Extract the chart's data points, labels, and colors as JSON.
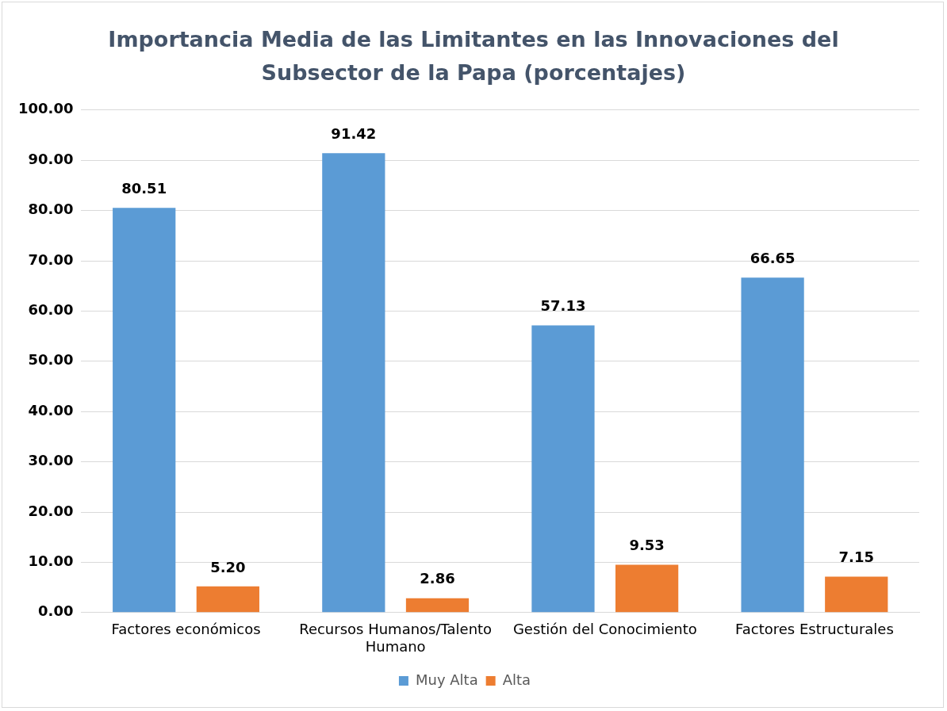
{
  "chart_data": {
    "type": "bar",
    "title": "Importancia Media de las Limitantes en las Innovaciones del Subsector de la Papa (porcentajes)",
    "categories": [
      "Factores económicos",
      "Recursos Humanos/Talento Humano",
      "Gestión del Conocimiento",
      "Factores Estructurales"
    ],
    "series": [
      {
        "name": "Muy Alta",
        "color": "#5b9bd5",
        "values": [
          80.51,
          91.42,
          57.13,
          66.65
        ],
        "value_labels": [
          "80.51",
          "91.42",
          "57.13",
          "66.65"
        ]
      },
      {
        "name": "Alta",
        "color": "#ed7d31",
        "values": [
          5.2,
          2.86,
          9.53,
          7.15
        ],
        "value_labels": [
          "5.20",
          "2.86",
          "9.53",
          "7.15"
        ]
      }
    ],
    "ylim": [
      0,
      100
    ],
    "yticks": [
      {
        "value": 0,
        "label": "0.00"
      },
      {
        "value": 10,
        "label": "10.00"
      },
      {
        "value": 20,
        "label": "20.00"
      },
      {
        "value": 30,
        "label": "30.00"
      },
      {
        "value": 40,
        "label": "40.00"
      },
      {
        "value": 50,
        "label": "50.00"
      },
      {
        "value": 60,
        "label": "60.00"
      },
      {
        "value": 70,
        "label": "70.00"
      },
      {
        "value": 80,
        "label": "80.00"
      },
      {
        "value": 90,
        "label": "90.00"
      },
      {
        "value": 100,
        "label": "100.00"
      }
    ],
    "grid": "y",
    "legend": "bottom"
  }
}
